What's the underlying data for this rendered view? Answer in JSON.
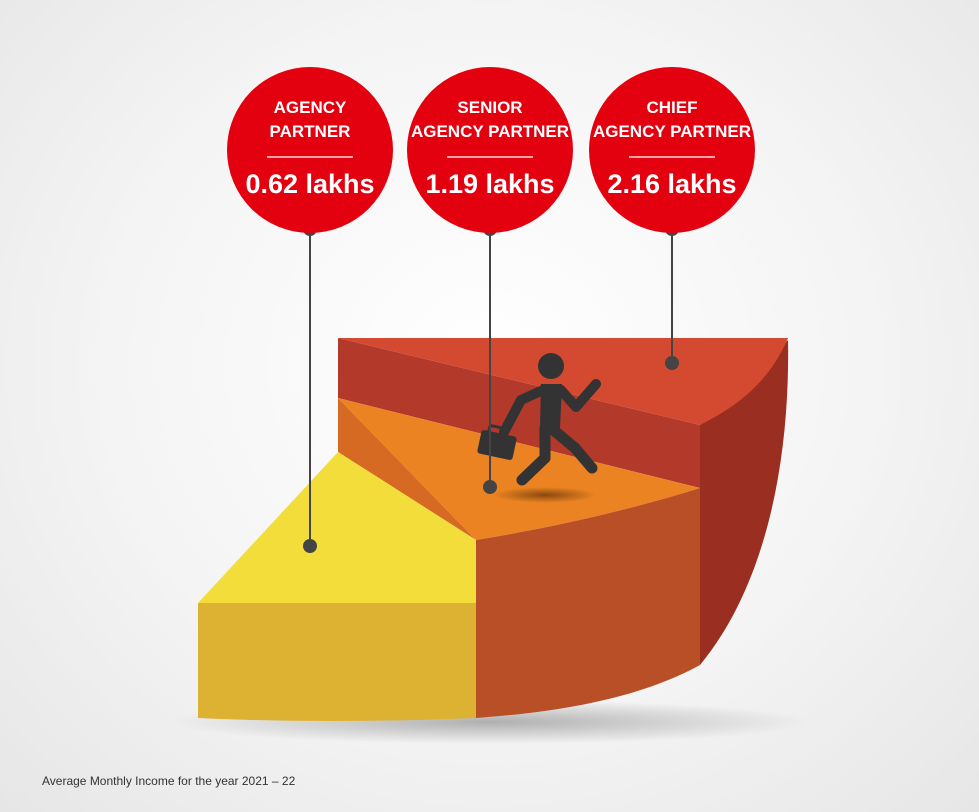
{
  "colors": {
    "badge": "#e3000f",
    "tier_low": "#f2dd3a",
    "tier_mid": "#ec8322",
    "tier_high": "#d34a31",
    "connector": "#444444"
  },
  "icons": [
    "running-businessman-icon"
  ],
  "levels": [
    {
      "title_lines": [
        "AGENCY",
        "PARTNER"
      ],
      "value": "0.62 lakhs"
    },
    {
      "title_lines": [
        "SENIOR",
        "AGENCY PARTNER"
      ],
      "value": "1.19 lakhs"
    },
    {
      "title_lines": [
        "CHIEF",
        "AGENCY PARTNER"
      ],
      "value": "2.16 lakhs"
    }
  ],
  "footnote": "Average Monthly Income for the year 2021 – 22"
}
